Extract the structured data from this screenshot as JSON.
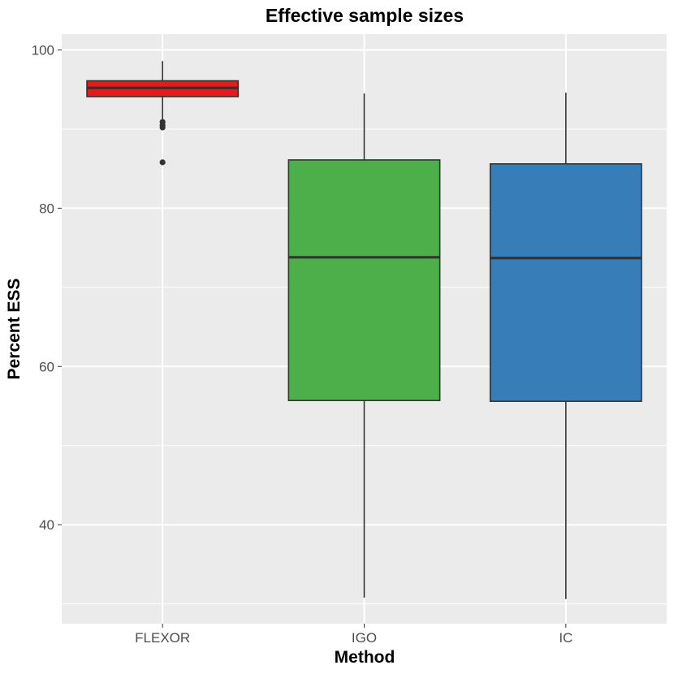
{
  "chart_data": {
    "type": "box",
    "title": "Effective sample sizes",
    "xlabel": "Method",
    "ylabel": "Percent ESS",
    "ylim": [
      27.5,
      102
    ],
    "y_ticks": [
      40,
      60,
      80,
      100
    ],
    "grid": true,
    "legend": "none",
    "categories": [
      "FLEXOR",
      "IGO",
      "IC"
    ],
    "boxes": [
      {
        "category": "FLEXOR",
        "whisker_low": 91.2,
        "q1": 94.1,
        "median": 95.2,
        "q3": 96.1,
        "whisker_high": 98.6,
        "outliers": [
          90.9,
          90.5,
          90.2,
          85.8
        ],
        "color": "#e41a1c"
      },
      {
        "category": "IGO",
        "whisker_low": 30.8,
        "q1": 55.7,
        "median": 73.8,
        "q3": 86.1,
        "whisker_high": 94.5,
        "outliers": [],
        "color": "#4daf4a"
      },
      {
        "category": "IC",
        "whisker_low": 30.6,
        "q1": 55.6,
        "median": 73.7,
        "q3": 85.6,
        "whisker_high": 94.6,
        "outliers": [],
        "color": "#377eb8"
      }
    ]
  }
}
